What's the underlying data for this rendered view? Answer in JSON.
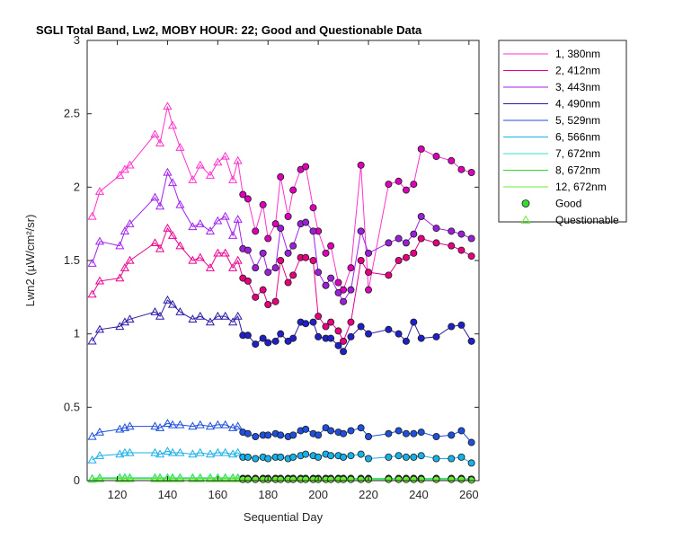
{
  "chart_data": {
    "type": "line",
    "title": "SGLI Total Band, Lw2, MOBY HOUR: 22;  Good and Questionable Data",
    "xlabel": "Sequential Day",
    "ylabel": "Lwn2 (µW/cm²/sr)",
    "xlim": [
      108,
      264
    ],
    "ylim": [
      0,
      3
    ],
    "xticks": [
      120,
      140,
      160,
      180,
      200,
      220,
      240,
      260
    ],
    "yticks": [
      0,
      0.5,
      1,
      1.5,
      2,
      2.5,
      3
    ],
    "xtick_labels": [
      "120",
      "140",
      "160",
      "180",
      "200",
      "220",
      "240",
      "260"
    ],
    "ytick_labels": [
      "0",
      "0.5",
      "1",
      "1.5",
      "2",
      "2.5",
      "3"
    ],
    "grid": false,
    "legend_position": "outside-top-right",
    "x": [
      110,
      113,
      121,
      123,
      125,
      135,
      137,
      140,
      142,
      145,
      150,
      153,
      157,
      160,
      163,
      166,
      168,
      170,
      172,
      175,
      178,
      180,
      183,
      185,
      188,
      190,
      193,
      195,
      198,
      200,
      203,
      205,
      208,
      210,
      213,
      217,
      220,
      228,
      232,
      235,
      238,
      241,
      247,
      253,
      257,
      261
    ],
    "good_start_index": 17,
    "series": [
      {
        "name": "1, 380nm",
        "color": "#ff33cc",
        "good_color": "#dd00bb",
        "values": [
          1.8,
          1.97,
          2.08,
          2.12,
          2.15,
          2.36,
          2.3,
          2.55,
          2.42,
          2.27,
          2.05,
          2.15,
          2.08,
          2.17,
          2.21,
          2.05,
          2.18,
          1.95,
          1.92,
          1.7,
          1.88,
          1.65,
          1.75,
          2.07,
          1.8,
          1.98,
          2.12,
          2.14,
          1.86,
          1.7,
          1.55,
          1.6,
          1.35,
          1.3,
          1.45,
          2.15,
          1.3,
          2.02,
          2.04,
          1.98,
          2.02,
          2.26,
          2.21,
          2.18,
          2.12,
          2.1
        ]
      },
      {
        "name": "2, 412nm",
        "color": "#e80090",
        "good_color": "#e6007f",
        "values": [
          1.27,
          1.36,
          1.38,
          1.45,
          1.5,
          1.62,
          1.58,
          1.72,
          1.67,
          1.6,
          1.5,
          1.52,
          1.45,
          1.55,
          1.55,
          1.45,
          1.5,
          1.38,
          1.36,
          1.25,
          1.3,
          1.2,
          1.22,
          1.5,
          1.35,
          1.4,
          1.52,
          1.52,
          1.5,
          1.12,
          1.05,
          1.08,
          1.02,
          0.95,
          1.08,
          1.5,
          1.42,
          1.4,
          1.5,
          1.52,
          1.55,
          1.65,
          1.62,
          1.6,
          1.57,
          1.53
        ]
      },
      {
        "name": "3, 443nm",
        "color": "#a020f0",
        "good_color": "#9a20d8",
        "values": [
          1.48,
          1.63,
          1.6,
          1.7,
          1.75,
          1.93,
          1.87,
          2.1,
          2.03,
          1.88,
          1.73,
          1.75,
          1.7,
          1.77,
          1.8,
          1.67,
          1.78,
          1.58,
          1.57,
          1.45,
          1.55,
          1.42,
          1.45,
          1.72,
          1.55,
          1.6,
          1.75,
          1.76,
          1.7,
          1.42,
          1.33,
          1.38,
          1.28,
          1.22,
          1.3,
          1.7,
          1.55,
          1.62,
          1.65,
          1.62,
          1.68,
          1.8,
          1.72,
          1.7,
          1.68,
          1.65
        ]
      },
      {
        "name": "4, 490nm",
        "color": "#2a1aa8",
        "good_color": "#2020c8",
        "values": [
          0.95,
          1.03,
          1.05,
          1.08,
          1.1,
          1.15,
          1.12,
          1.23,
          1.2,
          1.15,
          1.1,
          1.12,
          1.08,
          1.12,
          1.12,
          1.08,
          1.12,
          0.99,
          0.99,
          0.93,
          0.97,
          0.94,
          0.95,
          1.0,
          0.95,
          0.97,
          1.08,
          1.07,
          1.08,
          0.98,
          0.97,
          0.97,
          0.92,
          0.88,
          0.98,
          1.05,
          1.0,
          1.03,
          1.0,
          0.95,
          1.08,
          0.97,
          0.98,
          1.05,
          1.06,
          0.95
        ]
      },
      {
        "name": "5, 529nm",
        "color": "#1f4fdc",
        "good_color": "#1f4fdc",
        "values": [
          0.3,
          0.33,
          0.35,
          0.36,
          0.37,
          0.37,
          0.36,
          0.39,
          0.38,
          0.38,
          0.37,
          0.38,
          0.37,
          0.38,
          0.38,
          0.36,
          0.37,
          0.33,
          0.32,
          0.3,
          0.31,
          0.31,
          0.32,
          0.31,
          0.3,
          0.31,
          0.34,
          0.35,
          0.32,
          0.31,
          0.36,
          0.34,
          0.33,
          0.32,
          0.34,
          0.36,
          0.3,
          0.32,
          0.34,
          0.32,
          0.32,
          0.33,
          0.3,
          0.31,
          0.34,
          0.26
        ]
      },
      {
        "name": "6, 566nm",
        "color": "#18b0e8",
        "good_color": "#18b0e8",
        "values": [
          0.14,
          0.17,
          0.18,
          0.19,
          0.19,
          0.19,
          0.18,
          0.2,
          0.19,
          0.19,
          0.18,
          0.19,
          0.18,
          0.19,
          0.19,
          0.18,
          0.19,
          0.16,
          0.16,
          0.15,
          0.16,
          0.15,
          0.16,
          0.16,
          0.15,
          0.16,
          0.17,
          0.18,
          0.17,
          0.16,
          0.18,
          0.17,
          0.17,
          0.16,
          0.17,
          0.18,
          0.15,
          0.16,
          0.17,
          0.16,
          0.16,
          0.17,
          0.15,
          0.15,
          0.16,
          0.12
        ]
      },
      {
        "name": "7, 672nm",
        "color": "#30e0c8",
        "good_color": "#30d8c0",
        "values": [
          0.015,
          0.02,
          0.02,
          0.02,
          0.02,
          0.02,
          0.02,
          0.02,
          0.02,
          0.02,
          0.02,
          0.02,
          0.02,
          0.02,
          0.02,
          0.02,
          0.02,
          0.015,
          0.015,
          0.015,
          0.015,
          0.015,
          0.015,
          0.015,
          0.015,
          0.015,
          0.015,
          0.015,
          0.015,
          0.015,
          0.015,
          0.015,
          0.015,
          0.015,
          0.015,
          0.015,
          0.015,
          0.015,
          0.015,
          0.015,
          0.015,
          0.015,
          0.015,
          0.015,
          0.015,
          0.01
        ]
      },
      {
        "name": "8, 672nm",
        "color": "#30d830",
        "good_color": "#30d830",
        "values": [
          0.01,
          0.015,
          0.015,
          0.015,
          0.015,
          0.015,
          0.015,
          0.015,
          0.015,
          0.015,
          0.015,
          0.015,
          0.015,
          0.015,
          0.015,
          0.015,
          0.015,
          0.01,
          0.01,
          0.01,
          0.01,
          0.01,
          0.01,
          0.01,
          0.01,
          0.01,
          0.01,
          0.01,
          0.01,
          0.01,
          0.01,
          0.01,
          0.01,
          0.01,
          0.01,
          0.01,
          0.01,
          0.01,
          0.01,
          0.01,
          0.01,
          0.01,
          0.01,
          0.01,
          0.01,
          0.005
        ]
      },
      {
        "name": "12, 672nm",
        "color": "#66ee33",
        "good_color": "#66ee33",
        "values": [
          0.008,
          0.012,
          0.012,
          0.012,
          0.012,
          0.012,
          0.012,
          0.012,
          0.012,
          0.012,
          0.012,
          0.012,
          0.012,
          0.012,
          0.012,
          0.012,
          0.012,
          0.008,
          0.008,
          0.008,
          0.008,
          0.008,
          0.008,
          0.008,
          0.008,
          0.008,
          0.008,
          0.008,
          0.008,
          0.008,
          0.008,
          0.008,
          0.008,
          0.008,
          0.008,
          0.008,
          0.008,
          0.008,
          0.008,
          0.008,
          0.008,
          0.008,
          0.008,
          0.008,
          0.008,
          0.004
        ]
      }
    ],
    "marker_legend": [
      {
        "name": "Good",
        "marker": "circle",
        "color": "#33dd33"
      },
      {
        "name": "Questionable",
        "marker": "triangle",
        "color": "#66ee33"
      }
    ]
  }
}
